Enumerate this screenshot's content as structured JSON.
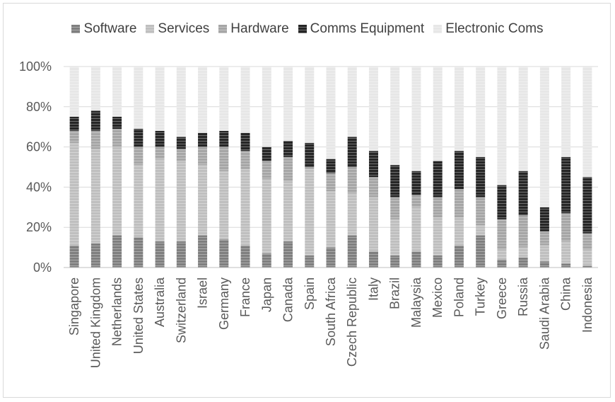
{
  "chart_data": {
    "type": "bar",
    "stacked": true,
    "categories": [
      "Singapore",
      "United Kingdom",
      "Netherlands",
      "United States",
      "Australia",
      "Switzerland",
      "Israel",
      "Germany",
      "France",
      "Japan",
      "Canada",
      "Spain",
      "South Africa",
      "Czech Republic",
      "Italy",
      "Brazil",
      "Malaysia",
      "Mexico",
      "Poland",
      "Turkey",
      "Greece",
      "Russia",
      "Saudi Arabia",
      "China",
      "Indonesia"
    ],
    "series": [
      {
        "name": "Software",
        "color": "#7f7f7f",
        "values": [
          11,
          12,
          16,
          15,
          13,
          13,
          16,
          14,
          11,
          7,
          13,
          6,
          10,
          16,
          8,
          6,
          8,
          6,
          11,
          16,
          4,
          5,
          3,
          2,
          1
        ]
      },
      {
        "name": "Services",
        "color": "#bfbfbf",
        "values": [
          51,
          47,
          44,
          36,
          41,
          40,
          35,
          34,
          38,
          37,
          30,
          43,
          28,
          21,
          27,
          18,
          22,
          19,
          14,
          5,
          5,
          5,
          8,
          11,
          8
        ]
      },
      {
        "name": "Hardware",
        "color": "#a6a6a6",
        "values": [
          6,
          9,
          9,
          9,
          6,
          6,
          9,
          12,
          9,
          9,
          12,
          1,
          9,
          13,
          10,
          11,
          6,
          10,
          14,
          14,
          15,
          16,
          7,
          14,
          8
        ]
      },
      {
        "name": "Comms Equipment",
        "color": "#262626",
        "values": [
          7,
          10,
          6,
          9,
          8,
          6,
          7,
          8,
          9,
          7,
          8,
          12,
          7,
          15,
          13,
          16,
          12,
          18,
          19,
          20,
          17,
          22,
          12,
          28,
          28
        ]
      },
      {
        "name": "Electronic Coms",
        "color": "#e7e7e7",
        "values": [
          25,
          22,
          25,
          31,
          32,
          35,
          33,
          32,
          33,
          40,
          37,
          38,
          46,
          35,
          42,
          49,
          52,
          47,
          42,
          45,
          59,
          52,
          70,
          45,
          55
        ]
      }
    ],
    "y_axis": {
      "min": 0,
      "max": 100,
      "ticks": [
        "0%",
        "20%",
        "40%",
        "60%",
        "80%",
        "100%"
      ]
    },
    "grid": true,
    "legend_position": "top"
  }
}
